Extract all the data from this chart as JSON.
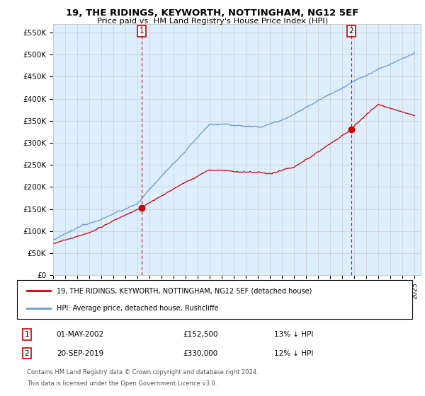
{
  "title": "19, THE RIDINGS, KEYWORTH, NOTTINGHAM, NG12 5EF",
  "subtitle": "Price paid vs. HM Land Registry's House Price Index (HPI)",
  "ylabel_ticks": [
    "£0",
    "£50K",
    "£100K",
    "£150K",
    "£200K",
    "£250K",
    "£300K",
    "£350K",
    "£400K",
    "£450K",
    "£500K",
    "£550K"
  ],
  "ytick_values": [
    0,
    50000,
    100000,
    150000,
    200000,
    250000,
    300000,
    350000,
    400000,
    450000,
    500000,
    550000
  ],
  "ylim": [
    0,
    570000
  ],
  "xlim_start": 1995,
  "xlim_end": 2025.5,
  "sale1_x": 2002.33,
  "sale1_y": 152500,
  "sale2_x": 2019.72,
  "sale2_y": 330000,
  "legend_red": "19, THE RIDINGS, KEYWORTH, NOTTINGHAM, NG12 5EF (detached house)",
  "legend_blue": "HPI: Average price, detached house, Rushcliffe",
  "ann1_date": "01-MAY-2002",
  "ann1_price": "£152,500",
  "ann1_hpi": "13% ↓ HPI",
  "ann2_date": "20-SEP-2019",
  "ann2_price": "£330,000",
  "ann2_hpi": "12% ↓ HPI",
  "footer_line1": "Contains HM Land Registry data © Crown copyright and database right 2024.",
  "footer_line2": "This data is licensed under the Open Government Licence v3.0.",
  "red_color": "#cc0000",
  "blue_color": "#6699cc",
  "blue_fill": "#ddeeff",
  "background_color": "#ffffff",
  "grid_color": "#cccccc"
}
